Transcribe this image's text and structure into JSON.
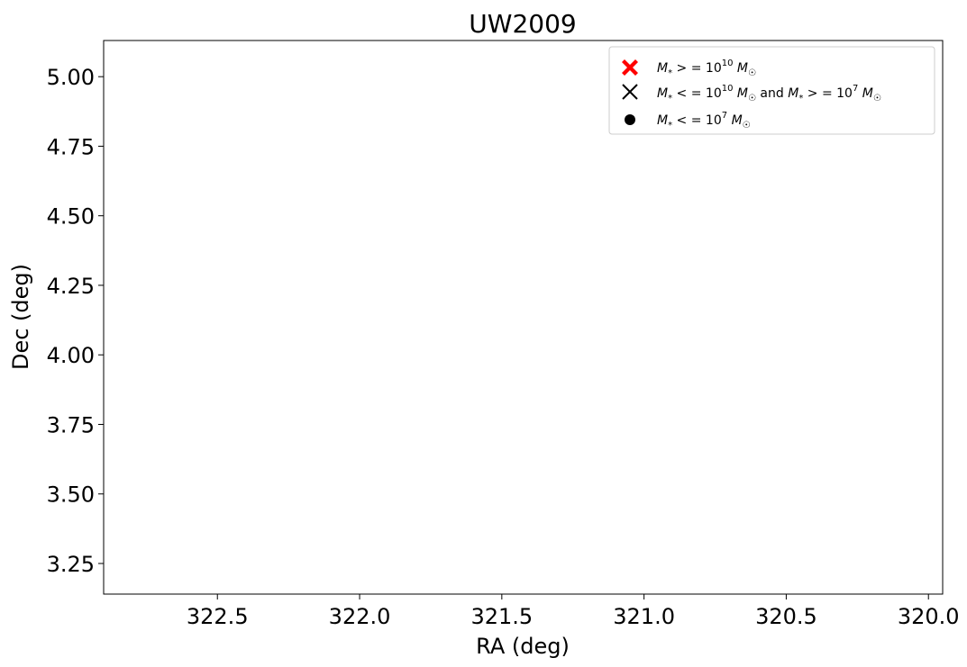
{
  "chart_data": {
    "type": "scatter",
    "title": "UW2009",
    "xlabel": "RA (deg)",
    "ylabel": "Dec (deg)",
    "xlim": [
      322.9,
      319.95
    ],
    "ylim": [
      3.14,
      5.13
    ],
    "x_inverted": true,
    "x_ticks": [
      322.5,
      322.0,
      321.5,
      321.0,
      320.5,
      320.0
    ],
    "x_tick_labels": [
      "322.5",
      "322.0",
      "321.5",
      "321.0",
      "320.5",
      "320.0"
    ],
    "y_ticks": [
      3.25,
      3.5,
      3.75,
      4.0,
      4.25,
      4.5,
      4.75,
      5.0
    ],
    "y_tick_labels": [
      "3.25",
      "3.50",
      "3.75",
      "4.00",
      "4.25",
      "4.50",
      "4.75",
      "5.00"
    ],
    "grid": false,
    "legend_position": "top-right",
    "series": [
      {
        "name": "M* >= 10^10 M☉",
        "marker": "filled-x",
        "color": "#ff0000",
        "points": []
      },
      {
        "name": "M* <= 10^10 M☉ and M* >= 10^7 M☉",
        "marker": "x",
        "color": "#000000",
        "points": []
      },
      {
        "name": "M* <= 10^7 M☉",
        "marker": "circle",
        "color": "#000000",
        "points": []
      }
    ]
  }
}
